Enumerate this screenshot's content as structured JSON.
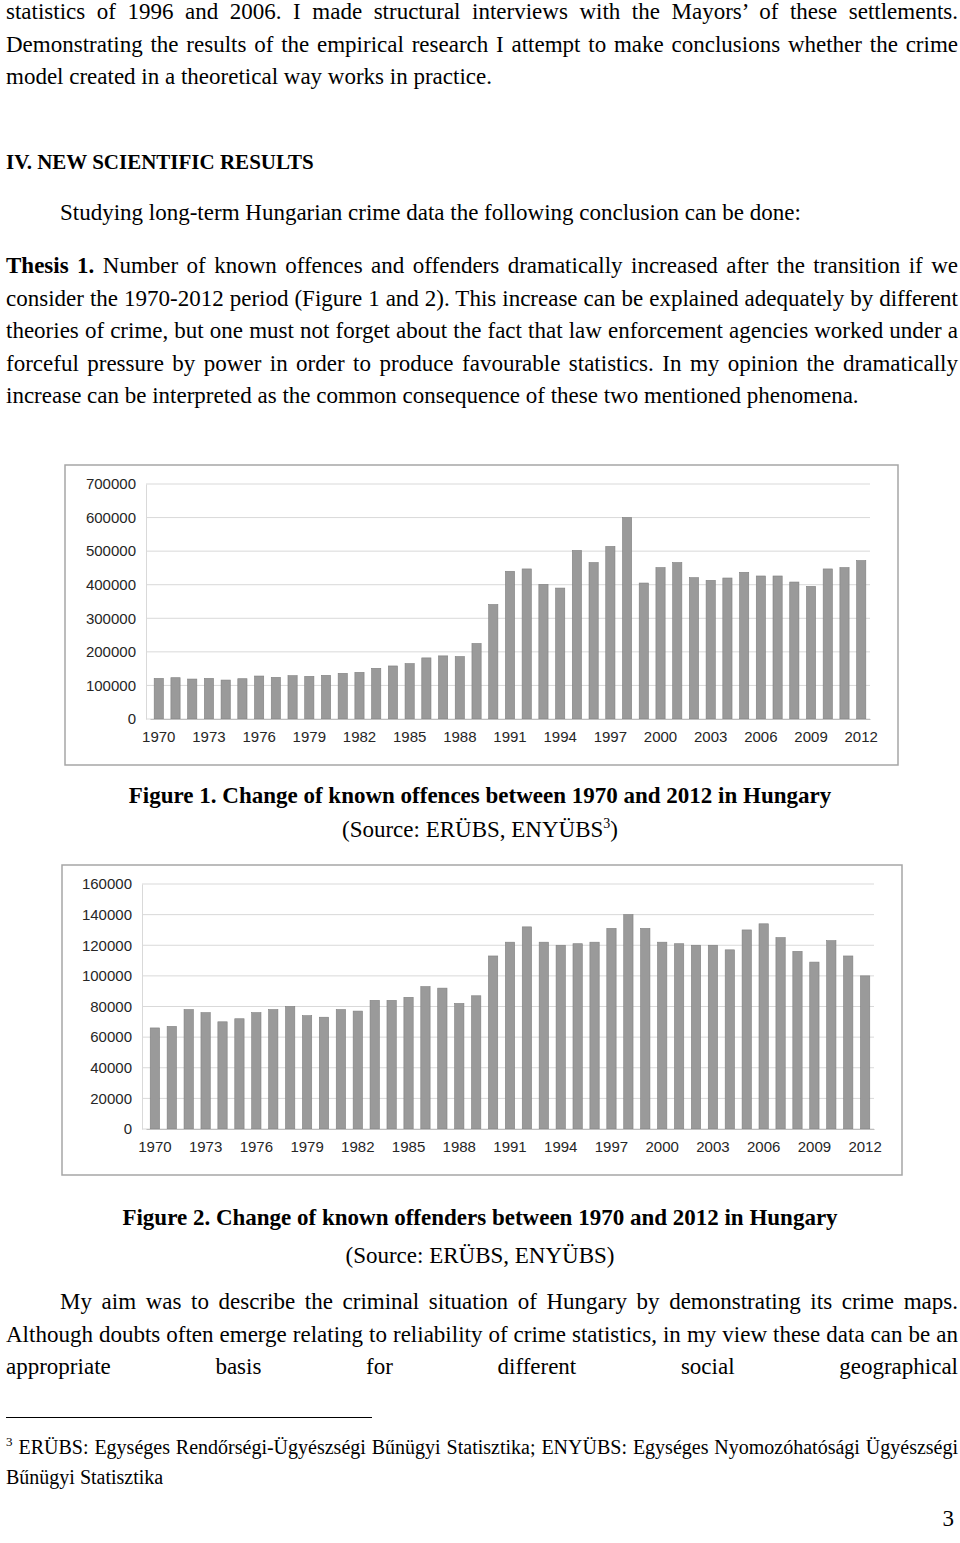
{
  "document": {
    "intro": "statistics of 1996 and 2006. I made structural interviews with the Mayors’ of these settlements. Demonstrating the results of the empirical research I attempt to make conclusions whether the crime model created in a theoretical way works in practice.",
    "heading": "IV. NEW SCIENTIFIC RESULTS",
    "lead": "Studying long-term Hungarian crime data the following conclusion can be done:",
    "thesis_label": "Thesis 1.",
    "thesis_text": "Number of known offences and offenders dramatically increased after the transition if we consider the 1970-2012 period (Figure 1 and 2). This increase can be explained adequately by different theories of crime, but one must not forget about the fact that law enforcement agencies worked under a forceful pressure by power in order to produce favourable statistics. In my opinion the dramatically increase can be interpreted as the common consequence of these two mentioned phenomena.",
    "captions": [
      {
        "title": "Figure 1. Change of known offences between 1970 and 2012 in Hungary",
        "source": "(Source: ERÜBS, ENYÜBS",
        "source_mark": "3",
        "source_end": ")"
      },
      {
        "title": "Figure 2. Change of known offenders between 1970 and 2012 in Hungary",
        "source": "(Source: ERÜBS, ENYÜBS)"
      }
    ],
    "closing": "My aim was to describe the criminal situation of Hungary by demonstrating its crime maps. Although doubts often emerge relating to reliability of crime statistics, in my view these data can be an appropriate basis for different social geographical",
    "footnote": {
      "mark": "3",
      "text": "ERÜBS: Egységes Rendőrségi-Ügyészségi Bűnügyi Statisztika; ENYÜBS: Egységes Nyomozóhatósági Ügyészségi Bűnügyi Statisztika"
    },
    "page_number": "3"
  },
  "chart_data": [
    {
      "type": "bar",
      "categories": [
        "1970",
        null,
        null,
        "1973",
        null,
        null,
        "1976",
        null,
        null,
        "1979",
        null,
        null,
        "1982",
        null,
        null,
        "1985",
        null,
        null,
        "1988",
        null,
        null,
        "1991",
        null,
        null,
        "1994",
        null,
        null,
        "1997",
        null,
        null,
        "2000",
        null,
        null,
        "2003",
        null,
        null,
        "2006",
        null,
        null,
        "2009",
        null,
        null,
        "2012"
      ],
      "values": [
        121000,
        123000,
        119000,
        121000,
        116000,
        120000,
        128000,
        124000,
        129000,
        127000,
        130000,
        136000,
        139000,
        151000,
        158000,
        165000,
        182000,
        188000,
        186000,
        225000,
        341000,
        440000,
        447000,
        401000,
        390000,
        502000,
        466000,
        514000,
        600000,
        405000,
        451000,
        466000,
        421000,
        413000,
        420000,
        437000,
        426000,
        426000,
        408000,
        395000,
        447000,
        451000,
        472000
      ],
      "color": "#9a9a9a",
      "ylim": [
        0,
        700000
      ],
      "yticks": [
        0,
        100000,
        200000,
        300000,
        400000,
        500000,
        600000,
        700000
      ],
      "grid": true
    },
    {
      "type": "bar",
      "categories": [
        "1970",
        null,
        null,
        "1973",
        null,
        null,
        "1976",
        null,
        null,
        "1979",
        null,
        null,
        "1982",
        null,
        null,
        "1985",
        null,
        null,
        "1988",
        null,
        null,
        "1991",
        null,
        null,
        "1994",
        null,
        null,
        "1997",
        null,
        null,
        "2000",
        null,
        null,
        "2003",
        null,
        null,
        "2006",
        null,
        null,
        "2009",
        null,
        null,
        "2012"
      ],
      "values": [
        66000,
        67000,
        78000,
        76000,
        70000,
        72000,
        76000,
        78000,
        80000,
        74000,
        73000,
        78000,
        77000,
        84000,
        84000,
        86000,
        93000,
        92000,
        82000,
        87000,
        113000,
        122000,
        132000,
        122000,
        120000,
        121000,
        122000,
        131000,
        140000,
        131000,
        122000,
        121000,
        120000,
        120000,
        117000,
        130000,
        134000,
        125000,
        116000,
        109000,
        123000,
        113000,
        100000
      ],
      "color": "#9a9a9a",
      "ylim": [
        0,
        160000
      ],
      "yticks": [
        0,
        20000,
        40000,
        60000,
        80000,
        100000,
        120000,
        140000,
        160000
      ],
      "grid": true
    }
  ]
}
